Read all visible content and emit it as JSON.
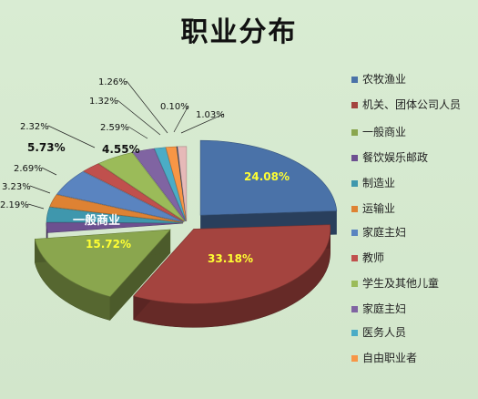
{
  "chart_data": {
    "type": "pie",
    "title": "职业分布",
    "slices": [
      {
        "label": "农牧渔业",
        "value": 24.08,
        "color": "#4a72a8",
        "display": "24.08%"
      },
      {
        "label": "机关、团体公司人员",
        "value": 33.18,
        "color": "#a4443f",
        "display": "33.18%"
      },
      {
        "label": "一般商业",
        "value": 15.72,
        "color": "#8aa64e",
        "display": "15.72%"
      },
      {
        "label": "餐饮娱乐邮政",
        "value": 2.19,
        "color": "#6d5090",
        "display": "2.19%"
      },
      {
        "label": "制造业",
        "value": 3.23,
        "color": "#3f97ad",
        "display": "3.23%"
      },
      {
        "label": "运输业",
        "value": 2.69,
        "color": "#de8233",
        "display": "2.69%"
      },
      {
        "label": "家庭主妇",
        "value": 5.73,
        "color": "#5a84c0",
        "display": "5.73%"
      },
      {
        "label": "教师",
        "value": 2.32,
        "color": "#c0504d",
        "display": "2.32%"
      },
      {
        "label": "学生及其他儿童",
        "value": 4.55,
        "color": "#9bbb59",
        "display": "4.55%"
      },
      {
        "label": "家庭主妇",
        "value": 2.59,
        "color": "#8064a2",
        "display": "2.59%"
      },
      {
        "label": "医务人员",
        "value": 1.32,
        "color": "#4bacc6",
        "display": "1.32%"
      },
      {
        "label": "自由职业者",
        "value": 1.26,
        "color": "#f79646",
        "display": "1.26%"
      },
      {
        "label": "",
        "value": 0.1,
        "color": "#2c4d75",
        "display": "0.10%"
      },
      {
        "label": "",
        "value": 1.03,
        "color": "#e6b9b8",
        "display": "1.03%"
      }
    ],
    "inside_slice_label": "一般商业",
    "legend_position": "right"
  }
}
